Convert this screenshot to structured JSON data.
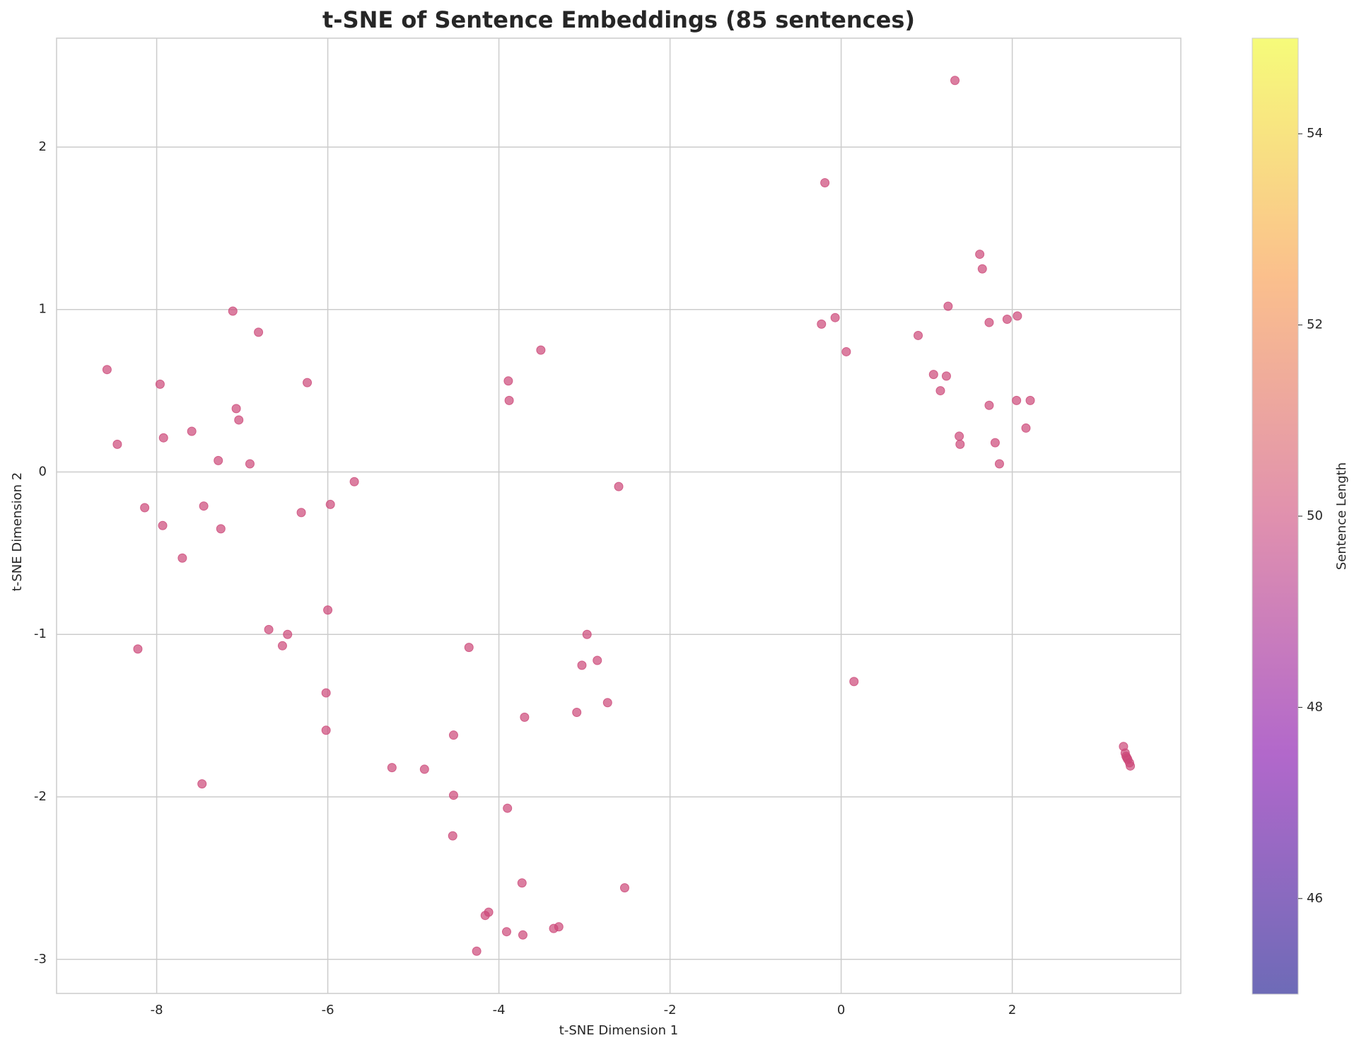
{
  "chart_data": {
    "type": "scatter",
    "title": "t-SNE of Sentence Embeddings (85 sentences)",
    "x_label": "t-SNE Dimension 1",
    "y_label": "t-SNE Dimension 2",
    "x": [
      1.33,
      -0.19,
      1.62,
      1.65,
      1.25,
      2.06,
      1.94,
      -0.07,
      -0.23,
      1.73,
      0.9,
      0.06,
      1.08,
      1.23,
      1.16,
      2.05,
      2.21,
      1.73,
      2.16,
      1.38,
      1.39,
      1.8,
      1.85,
      0.15,
      3.3,
      3.32,
      3.33,
      3.34,
      3.35,
      3.37,
      3.38,
      -8.58,
      -8.46,
      -7.96,
      -7.92,
      -7.59,
      -7.11,
      -6.81,
      -7.07,
      -7.04,
      -7.28,
      -6.91,
      -6.24,
      -8.14,
      -7.45,
      -7.93,
      -7.25,
      -7.7,
      -6.31,
      -5.97,
      -5.69,
      -8.22,
      -6.69,
      -6.47,
      -6.53,
      -6.0,
      -6.02,
      -6.02,
      -7.47,
      -3.51,
      -3.89,
      -3.88,
      -2.6,
      -4.35,
      -2.97,
      -2.85,
      -3.03,
      -2.73,
      -3.09,
      -3.7,
      -4.53,
      -5.25,
      -4.87,
      -4.53,
      -3.9,
      -4.54,
      -3.73,
      -2.53,
      -4.12,
      -4.16,
      -3.3,
      -3.36,
      -3.91,
      -3.72,
      -4.26
    ],
    "y": [
      2.41,
      1.78,
      1.34,
      1.25,
      1.02,
      0.96,
      0.94,
      0.95,
      0.91,
      0.92,
      0.84,
      0.74,
      0.6,
      0.59,
      0.5,
      0.44,
      0.44,
      0.41,
      0.27,
      0.22,
      0.17,
      0.18,
      0.05,
      -1.29,
      -1.69,
      -1.73,
      -1.75,
      -1.76,
      -1.77,
      -1.79,
      -1.81,
      0.63,
      0.17,
      0.54,
      0.21,
      0.25,
      0.99,
      0.86,
      0.39,
      0.32,
      0.07,
      0.05,
      0.55,
      -0.22,
      -0.21,
      -0.33,
      -0.35,
      -0.53,
      -0.25,
      -0.2,
      -0.06,
      -1.09,
      -0.97,
      -1.0,
      -1.07,
      -0.85,
      -1.36,
      -1.59,
      -1.92,
      0.75,
      0.56,
      0.44,
      -0.09,
      -1.08,
      -1.0,
      -1.16,
      -1.19,
      -1.42,
      -1.48,
      -1.51,
      -1.62,
      -1.82,
      -1.83,
      -1.99,
      -2.07,
      -2.24,
      -2.53,
      -2.56,
      -2.71,
      -2.73,
      -2.8,
      -2.81,
      -2.83,
      -2.85,
      -2.95
    ],
    "color": "#cc4778",
    "xlim": [
      -9.17,
      3.97
    ],
    "ylim": [
      -3.21,
      2.67
    ],
    "xticks": [
      -8,
      -6,
      -4,
      -2,
      0,
      2
    ],
    "yticks": [
      -3,
      -2,
      -1,
      0,
      1,
      2
    ],
    "grid": true,
    "colorbar": {
      "label": "Sentence Length",
      "lim": [
        45,
        55
      ],
      "ticks": [
        46,
        48,
        50,
        52,
        54
      ],
      "colormap": [
        "#0d0887",
        "#7e03a8",
        "#cc4778",
        "#f89540",
        "#f0f921"
      ]
    }
  }
}
